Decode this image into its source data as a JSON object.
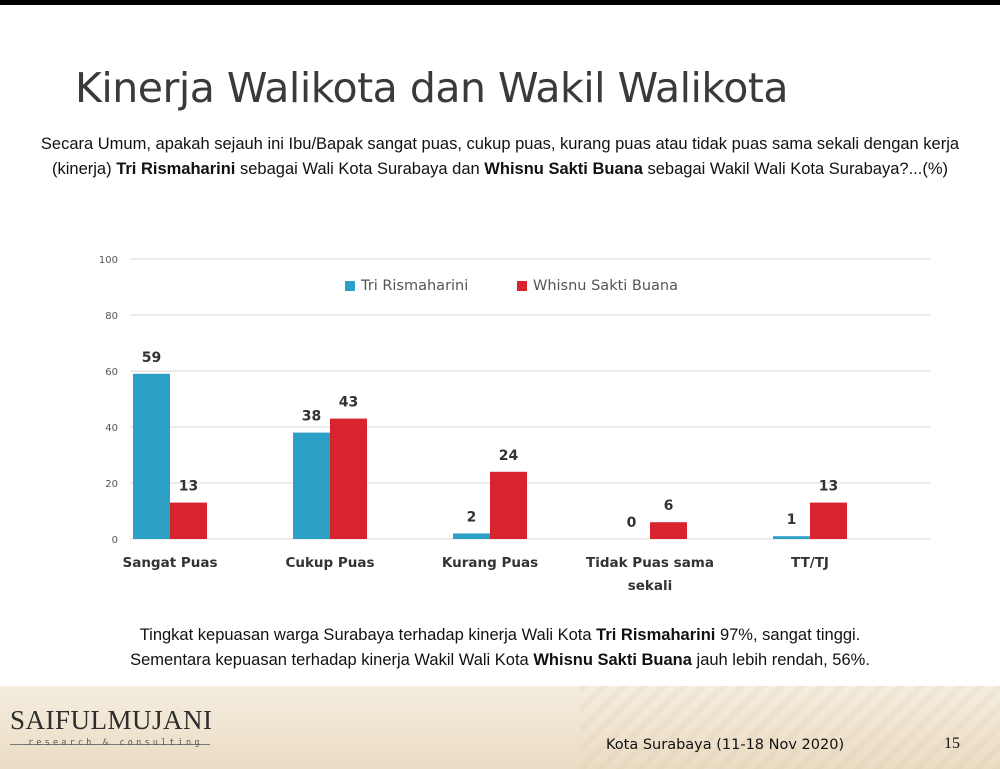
{
  "slide": {
    "title": "Kinerja Walikota dan Wakil Walikota",
    "question": {
      "part1": "Secara Umum, apakah sejauh ini Ibu/Bapak sangat puas, cukup puas, kurang puas atau tidak puas sama sekali dengan kerja (kinerja) ",
      "bold1": "Tri Rismaharini",
      "part2": " sebagai Wali Kota Surabaya dan ",
      "bold2": "Whisnu Sakti Buana",
      "part3": " sebagai Wakil Wali Kota Surabaya?...(%)"
    },
    "summary": {
      "line1_part1": "Tingkat kepuasan warga Surabaya terhadap kinerja Wali Kota ",
      "line1_bold": "Tri Rismaharini",
      "line1_part2": " 97%, sangat tinggi.",
      "line2_part1": "Sementara kepuasan terhadap kinerja Wakil Wali Kota ",
      "line2_bold": "Whisnu Sakti Buana",
      "line2_part2": " jauh lebih rendah, 56%."
    },
    "footer": {
      "logo_main": "SAIFULMUJANI",
      "logo_sub": "research & consulting",
      "location": "Kota Surabaya (11-18 Nov 2020)",
      "page_number": "15"
    }
  },
  "chart_data": {
    "type": "bar",
    "categories": [
      [
        "Sangat Puas"
      ],
      [
        "Cukup Puas"
      ],
      [
        "Kurang Puas"
      ],
      [
        "Tidak Puas sama",
        "sekali"
      ],
      [
        "TT/TJ"
      ]
    ],
    "series": [
      {
        "name": "Tri Rismaharini",
        "color": "#2ea0c6",
        "values": [
          59,
          38,
          2,
          0,
          1
        ]
      },
      {
        "name": "Whisnu Sakti Buana",
        "color": "#d7242e",
        "values": [
          13,
          43,
          24,
          6,
          13
        ]
      }
    ],
    "ylim": [
      0,
      100
    ],
    "yticks": [
      0,
      20,
      40,
      60,
      80,
      100
    ],
    "grid": true,
    "legend_position": "top-center"
  }
}
